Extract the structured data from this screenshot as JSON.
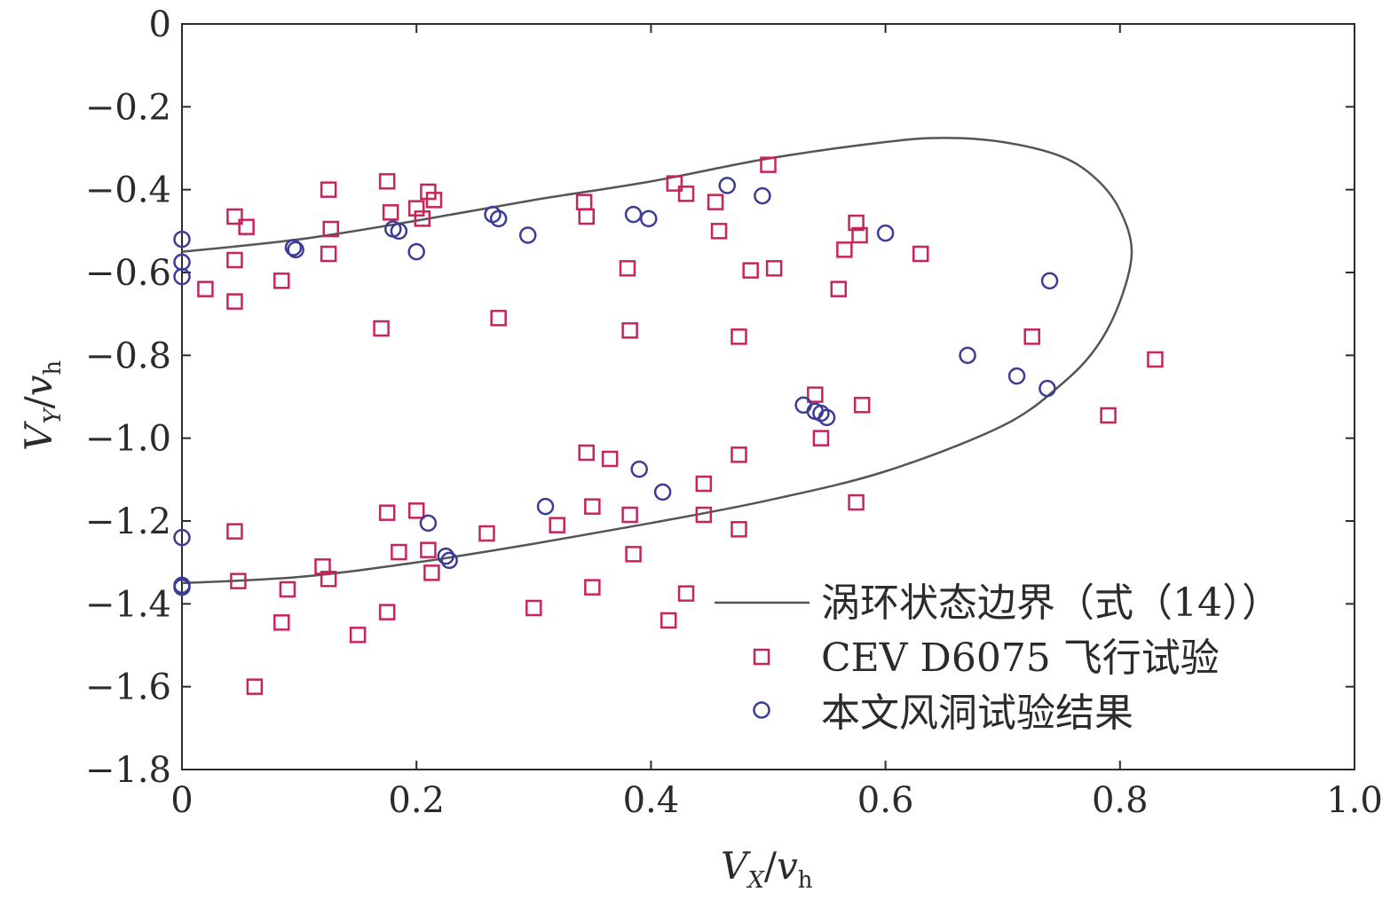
{
  "chart_data": {
    "type": "scatter",
    "xlabel": {
      "main": "V",
      "sub": "X",
      "sep": "/",
      "denom": "v",
      "denom_sub": "h"
    },
    "ylabel": {
      "main": "V",
      "sub": "Y",
      "sep": "/",
      "denom": "v",
      "denom_sub": "h"
    },
    "xlim": [
      0,
      1.0
    ],
    "ylim": [
      -1.8,
      0
    ],
    "x_ticks": [
      "0",
      "0.2",
      "0.4",
      "0.6",
      "0.8",
      "1.0"
    ],
    "y_ticks": [
      "0",
      "−0.2",
      "−0.4",
      "−0.6",
      "−0.8",
      "−1.0",
      "−1.2",
      "−1.4",
      "−1.6",
      "−1.8"
    ],
    "grid": false,
    "legend_position": "bottom-right",
    "colors": {
      "boundary": "#555555",
      "flight": "#c8245a",
      "tunnel": "#3c3c96",
      "axis": "#2b2b2b"
    },
    "series": [
      {
        "name": "涡环状态边界（式（14））",
        "kind": "line",
        "x": [
          0,
          0.1,
          0.2,
          0.3,
          0.4,
          0.5,
          0.6,
          0.65,
          0.7,
          0.75,
          0.78,
          0.8,
          0.81,
          0.8,
          0.78,
          0.75,
          0.7,
          0.6,
          0.5,
          0.4,
          0.3,
          0.2,
          0.1,
          0
        ],
        "y": [
          -0.55,
          -0.52,
          -0.475,
          -0.425,
          -0.38,
          -0.325,
          -0.285,
          -0.275,
          -0.285,
          -0.32,
          -0.375,
          -0.45,
          -0.55,
          -0.67,
          -0.78,
          -0.87,
          -0.97,
          -1.08,
          -1.15,
          -1.205,
          -1.255,
          -1.3,
          -1.335,
          -1.35
        ]
      },
      {
        "name": "CEV D6075 飞行试验",
        "kind": "square",
        "points": [
          [
            0.02,
            -0.64
          ],
          [
            0.045,
            -0.465
          ],
          [
            0.055,
            -0.49
          ],
          [
            0.045,
            -0.57
          ],
          [
            0.045,
            -0.67
          ],
          [
            0.085,
            -0.62
          ],
          [
            0.125,
            -0.4
          ],
          [
            0.125,
            -0.555
          ],
          [
            0.127,
            -0.495
          ],
          [
            0.175,
            -0.38
          ],
          [
            0.178,
            -0.455
          ],
          [
            0.2,
            -0.445
          ],
          [
            0.205,
            -0.47
          ],
          [
            0.21,
            -0.405
          ],
          [
            0.215,
            -0.425
          ],
          [
            0.17,
            -0.735
          ],
          [
            0.343,
            -0.43
          ],
          [
            0.345,
            -0.465
          ],
          [
            0.27,
            -0.71
          ],
          [
            0.38,
            -0.59
          ],
          [
            0.382,
            -0.74
          ],
          [
            0.42,
            -0.385
          ],
          [
            0.43,
            -0.41
          ],
          [
            0.455,
            -0.43
          ],
          [
            0.458,
            -0.5
          ],
          [
            0.475,
            -0.755
          ],
          [
            0.485,
            -0.595
          ],
          [
            0.505,
            -0.59
          ],
          [
            0.5,
            -0.34
          ],
          [
            0.56,
            -0.64
          ],
          [
            0.565,
            -0.545
          ],
          [
            0.575,
            -0.48
          ],
          [
            0.578,
            -0.51
          ],
          [
            0.63,
            -0.555
          ],
          [
            0.725,
            -0.755
          ],
          [
            0.83,
            -0.81
          ],
          [
            0.54,
            -0.895
          ],
          [
            0.545,
            -1.0
          ],
          [
            0.58,
            -0.92
          ],
          [
            0.79,
            -0.945
          ],
          [
            0.345,
            -1.035
          ],
          [
            0.365,
            -1.05
          ],
          [
            0.35,
            -1.165
          ],
          [
            0.382,
            -1.185
          ],
          [
            0.385,
            -1.28
          ],
          [
            0.32,
            -1.21
          ],
          [
            0.26,
            -1.23
          ],
          [
            0.3,
            -1.41
          ],
          [
            0.35,
            -1.36
          ],
          [
            0.415,
            -1.44
          ],
          [
            0.43,
            -1.375
          ],
          [
            0.445,
            -1.11
          ],
          [
            0.445,
            -1.185
          ],
          [
            0.475,
            -1.04
          ],
          [
            0.475,
            -1.22
          ],
          [
            0.575,
            -1.155
          ],
          [
            0.045,
            -1.225
          ],
          [
            0.048,
            -1.345
          ],
          [
            0.09,
            -1.365
          ],
          [
            0.085,
            -1.445
          ],
          [
            0.12,
            -1.31
          ],
          [
            0.125,
            -1.34
          ],
          [
            0.15,
            -1.475
          ],
          [
            0.175,
            -1.42
          ],
          [
            0.175,
            -1.18
          ],
          [
            0.2,
            -1.175
          ],
          [
            0.185,
            -1.275
          ],
          [
            0.21,
            -1.27
          ],
          [
            0.213,
            -1.325
          ],
          [
            0.062,
            -1.6
          ]
        ]
      },
      {
        "name": "本文风洞试验结果",
        "kind": "circle",
        "points": [
          [
            0.0,
            -0.52
          ],
          [
            0.0,
            -0.575
          ],
          [
            0.0,
            -0.61
          ],
          [
            0.095,
            -0.54
          ],
          [
            0.097,
            -0.545
          ],
          [
            0.18,
            -0.495
          ],
          [
            0.185,
            -0.5
          ],
          [
            0.2,
            -0.55
          ],
          [
            0.265,
            -0.46
          ],
          [
            0.27,
            -0.47
          ],
          [
            0.295,
            -0.51
          ],
          [
            0.385,
            -0.46
          ],
          [
            0.398,
            -0.47
          ],
          [
            0.465,
            -0.39
          ],
          [
            0.495,
            -0.415
          ],
          [
            0.6,
            -0.505
          ],
          [
            0.74,
            -0.62
          ],
          [
            0.67,
            -0.8
          ],
          [
            0.712,
            -0.85
          ],
          [
            0.738,
            -0.88
          ],
          [
            0.53,
            -0.92
          ],
          [
            0.54,
            -0.935
          ],
          [
            0.545,
            -0.94
          ],
          [
            0.55,
            -0.95
          ],
          [
            0.39,
            -1.075
          ],
          [
            0.41,
            -1.13
          ],
          [
            0.31,
            -1.165
          ],
          [
            0.21,
            -1.205
          ],
          [
            0.225,
            -1.285
          ],
          [
            0.228,
            -1.295
          ],
          [
            0.0,
            -1.24
          ],
          [
            0.0,
            -1.355
          ],
          [
            0.0,
            -1.36
          ]
        ]
      }
    ]
  }
}
